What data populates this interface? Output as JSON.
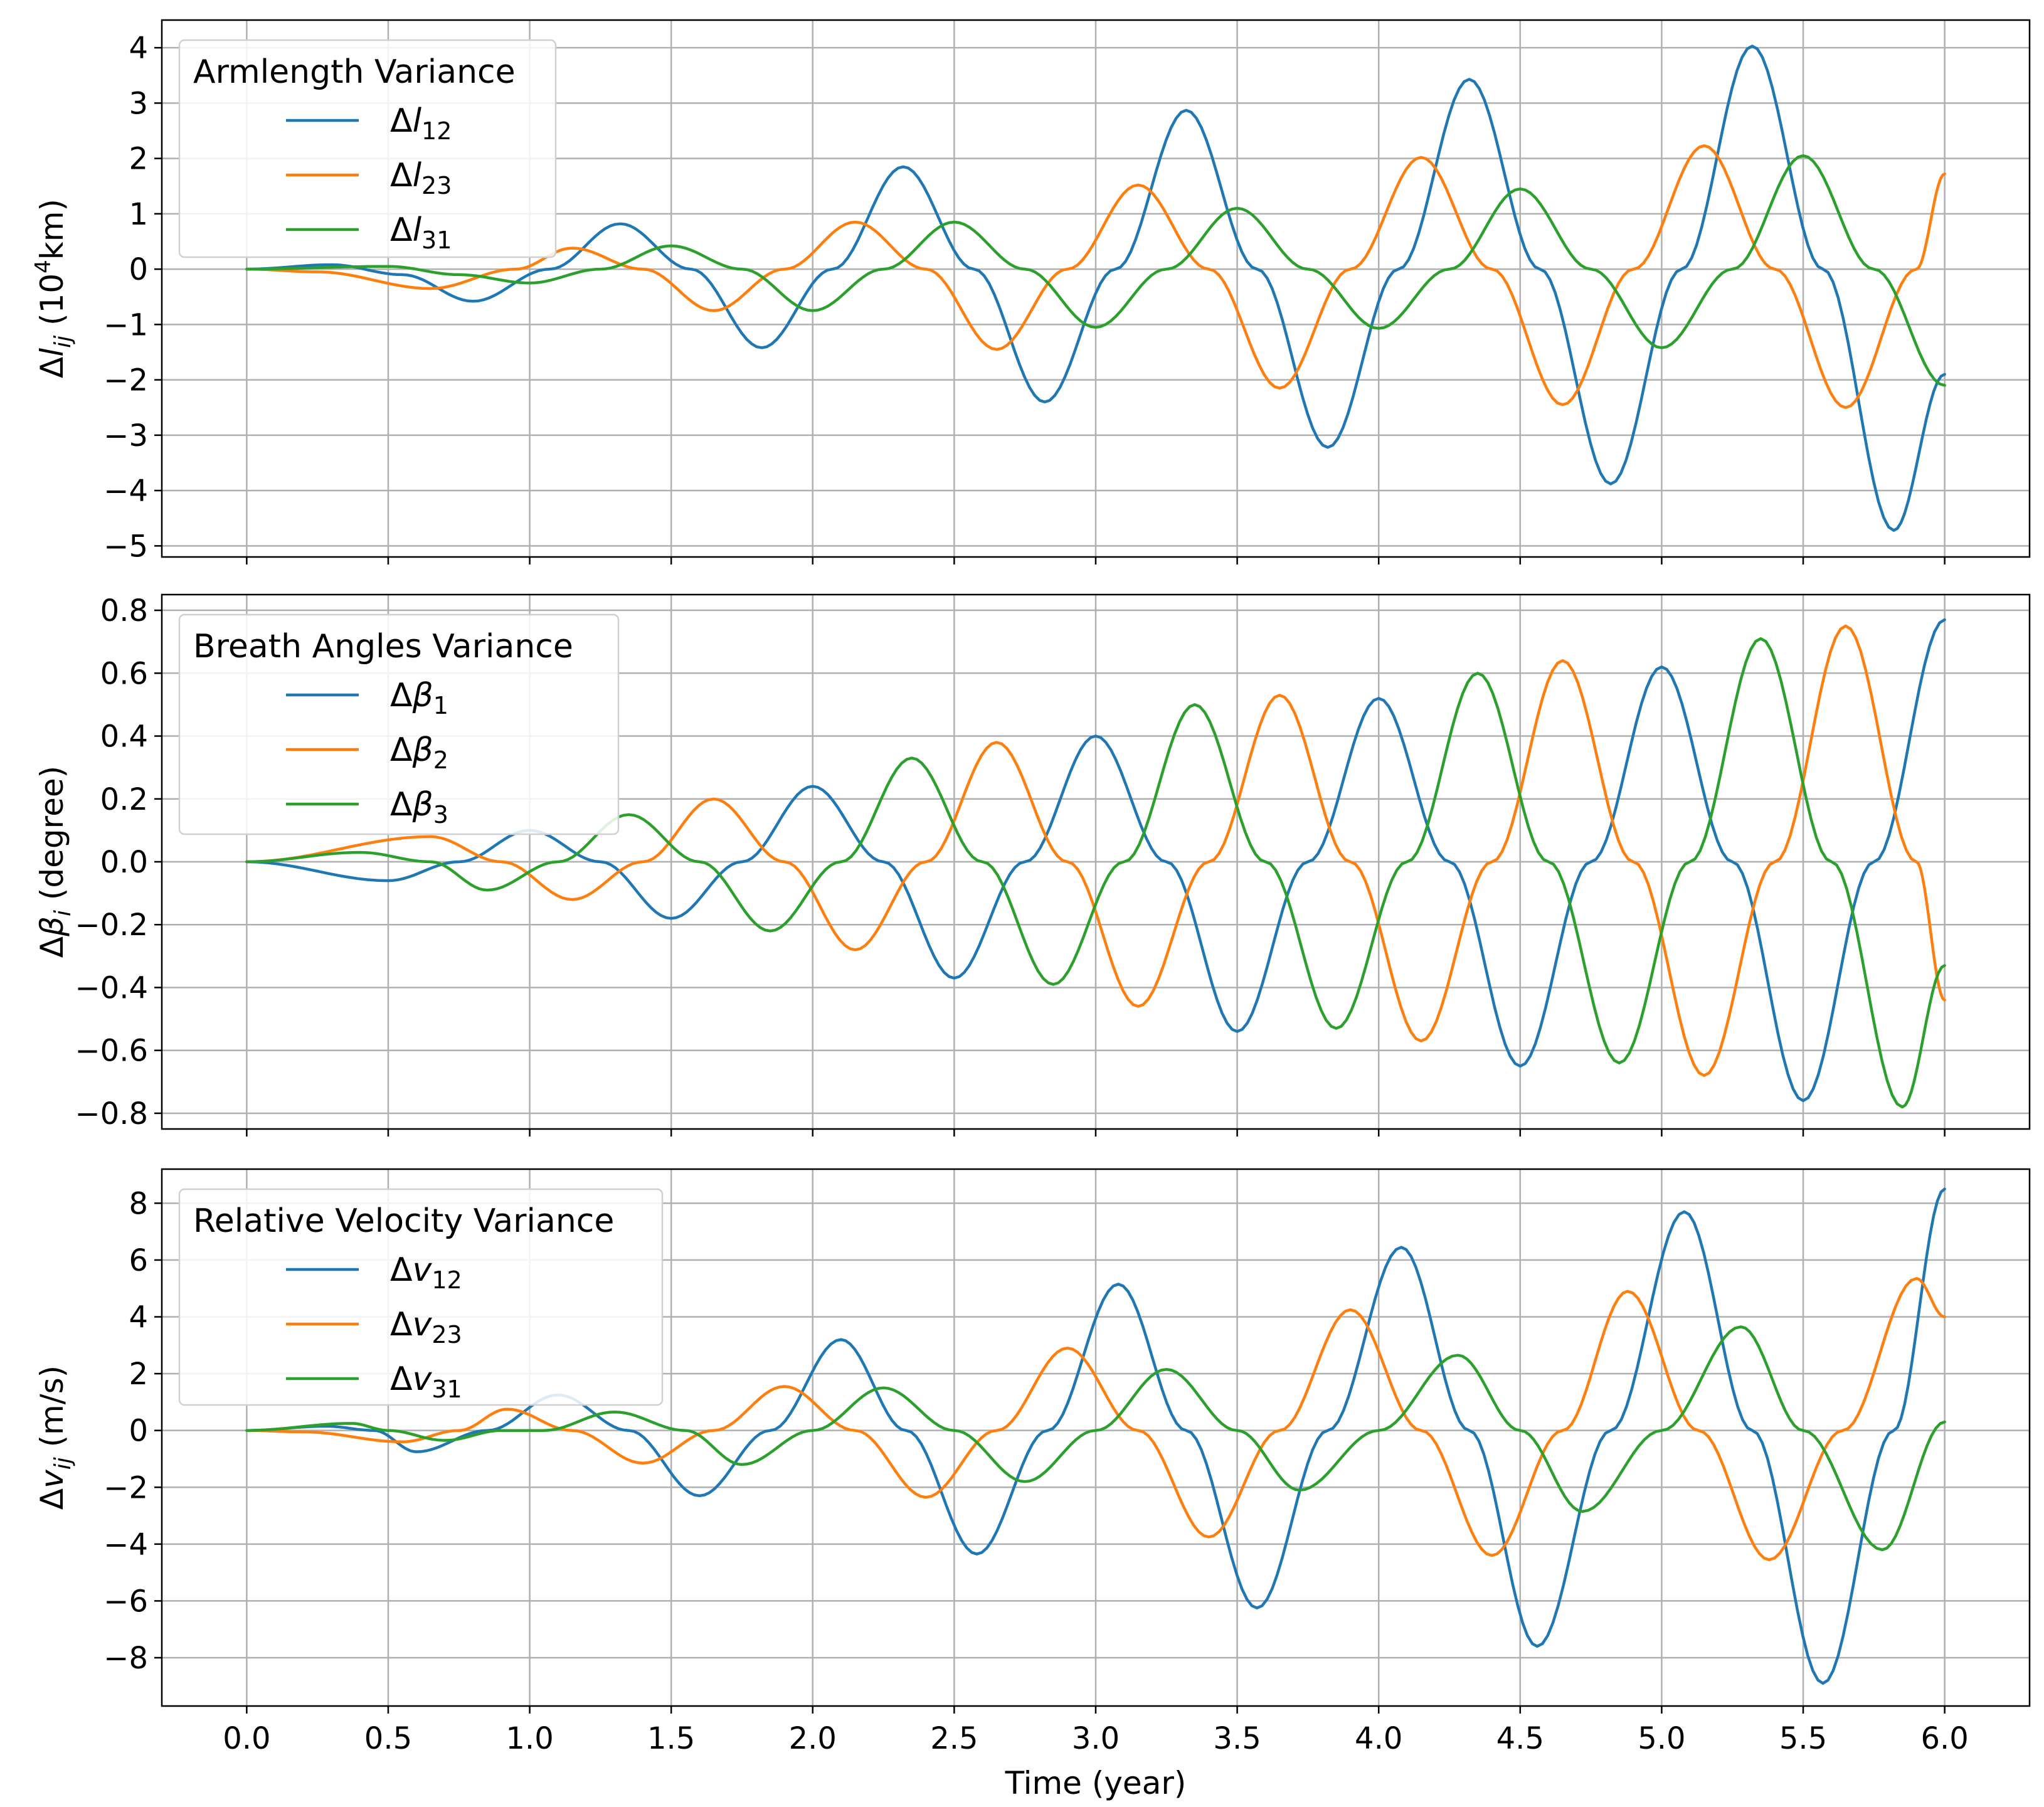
{
  "chart_data": [
    {
      "type": "line",
      "legend_title": "Armlength Variance",
      "ylabel": "Δl_ij (10^4 km)",
      "ylabel_parts": {
        "main": "Δl",
        "sub": "ij",
        "pre_unit": " (10",
        "sup": "4",
        "post_unit": "km)"
      },
      "xlabel": "",
      "ylim": [
        -5.2,
        4.5
      ],
      "yticks": [
        4,
        3,
        2,
        1,
        0,
        -1,
        -2,
        -3,
        -4,
        -5
      ],
      "ytick_labels": [
        "4",
        "3",
        "2",
        "1",
        "0",
        "−1",
        "−2",
        "−3",
        "−4",
        "−5"
      ],
      "xlim": [
        -0.3,
        6.3
      ],
      "grid": true,
      "legend_placement": "top-left",
      "series": [
        {
          "name": "Δl12",
          "label_main": "Δl",
          "label_sub": "12",
          "color": "#1f77b4",
          "x": [
            0,
            0.3,
            0.55,
            0.8,
            1.07,
            1.32,
            1.57,
            1.82,
            2.07,
            2.32,
            2.57,
            2.82,
            3.07,
            3.32,
            3.57,
            3.82,
            4.07,
            4.32,
            4.57,
            4.82,
            5.07,
            5.32,
            5.57,
            5.82,
            6.0
          ],
          "y": [
            0,
            0.08,
            -0.1,
            -0.58,
            0.0,
            0.82,
            0.0,
            -1.42,
            0.0,
            1.85,
            0.0,
            -2.4,
            0.0,
            2.87,
            0.0,
            -3.22,
            0.0,
            3.43,
            0.0,
            -3.88,
            0.0,
            4.03,
            0.0,
            -4.72,
            -1.9
          ]
        },
        {
          "name": "Δl23",
          "label_main": "Δl",
          "label_sub": "23",
          "color": "#ff7f0e",
          "x": [
            0,
            0.25,
            0.65,
            0.95,
            1.15,
            1.4,
            1.65,
            1.9,
            2.15,
            2.4,
            2.65,
            2.9,
            3.15,
            3.4,
            3.65,
            3.9,
            4.15,
            4.4,
            4.65,
            4.9,
            5.15,
            5.4,
            5.65,
            5.9,
            6.0
          ],
          "y": [
            0,
            -0.05,
            -0.35,
            0.0,
            0.38,
            0.0,
            -0.75,
            0.0,
            0.85,
            0.0,
            -1.45,
            0.0,
            1.52,
            0.0,
            -2.15,
            0.0,
            2.02,
            0.0,
            -2.45,
            0.0,
            2.23,
            0.0,
            -2.5,
            0.0,
            1.72
          ]
        },
        {
          "name": "Δl31",
          "label_main": "Δl",
          "label_sub": "31",
          "color": "#2ca02c",
          "x": [
            0,
            0.5,
            0.75,
            1.0,
            1.25,
            1.5,
            1.75,
            2.0,
            2.25,
            2.5,
            2.75,
            3.0,
            3.25,
            3.5,
            3.75,
            4.0,
            4.25,
            4.5,
            4.75,
            5.0,
            5.25,
            5.5,
            5.75,
            6.0
          ],
          "y": [
            0,
            0.05,
            -0.1,
            -0.25,
            0.0,
            0.42,
            0.0,
            -0.75,
            0.0,
            0.85,
            0.0,
            -1.05,
            0.0,
            1.1,
            0.0,
            -1.07,
            0.0,
            1.45,
            0.0,
            -1.42,
            0.0,
            2.05,
            0.0,
            -2.1
          ]
        }
      ]
    },
    {
      "type": "line",
      "legend_title": "Breath Angles Variance",
      "ylabel": "Δβ_i (degree)",
      "ylabel_parts": {
        "main": "Δβ",
        "sub": "i",
        "pre_unit": " (degree)",
        "sup": "",
        "post_unit": ""
      },
      "xlabel": "",
      "ylim": [
        -0.85,
        0.85
      ],
      "yticks": [
        0.8,
        0.6,
        0.4,
        0.2,
        0.0,
        -0.2,
        -0.4,
        -0.6,
        -0.8
      ],
      "ytick_labels": [
        "0.8",
        "0.6",
        "0.4",
        "0.2",
        "0.0",
        "−0.2",
        "−0.4",
        "−0.6",
        "−0.8"
      ],
      "xlim": [
        -0.3,
        6.3
      ],
      "grid": true,
      "legend_placement": "top-left",
      "series": [
        {
          "name": "Δβ1",
          "label_main": "Δβ",
          "label_sub": "1",
          "color": "#1f77b4",
          "x": [
            0,
            0.5,
            0.75,
            1.0,
            1.25,
            1.5,
            1.75,
            2.0,
            2.25,
            2.5,
            2.75,
            3.0,
            3.25,
            3.5,
            3.75,
            4.0,
            4.25,
            4.5,
            4.75,
            5.0,
            5.25,
            5.5,
            5.75,
            6.0
          ],
          "y": [
            0,
            -0.06,
            0.0,
            0.1,
            0.0,
            -0.18,
            0.0,
            0.24,
            0.0,
            -0.37,
            0.0,
            0.4,
            0.0,
            -0.54,
            0.0,
            0.52,
            0.0,
            -0.65,
            0.0,
            0.62,
            0.0,
            -0.76,
            0.0,
            0.77
          ]
        },
        {
          "name": "Δβ2",
          "label_main": "Δβ",
          "label_sub": "2",
          "color": "#ff7f0e",
          "x": [
            0,
            0.65,
            0.9,
            1.15,
            1.4,
            1.65,
            1.9,
            2.15,
            2.4,
            2.65,
            2.9,
            3.15,
            3.4,
            3.65,
            3.9,
            4.15,
            4.4,
            4.65,
            4.9,
            5.15,
            5.4,
            5.65,
            5.9,
            6.0
          ],
          "y": [
            0,
            0.08,
            0.0,
            -0.12,
            0.0,
            0.2,
            0.0,
            -0.28,
            0.0,
            0.38,
            0.0,
            -0.46,
            0.0,
            0.53,
            0.0,
            -0.57,
            0.0,
            0.64,
            0.0,
            -0.68,
            0.0,
            0.75,
            0.0,
            -0.44
          ]
        },
        {
          "name": "Δβ3",
          "label_main": "Δβ",
          "label_sub": "3",
          "color": "#2ca02c",
          "x": [
            0,
            0.4,
            0.65,
            0.85,
            1.1,
            1.35,
            1.6,
            1.85,
            2.1,
            2.35,
            2.6,
            2.85,
            3.1,
            3.35,
            3.6,
            3.85,
            4.1,
            4.35,
            4.6,
            4.85,
            5.1,
            5.35,
            5.6,
            5.85,
            6.0
          ],
          "y": [
            0,
            0.03,
            0.0,
            -0.09,
            0.0,
            0.15,
            0.0,
            -0.22,
            0.0,
            0.33,
            0.0,
            -0.39,
            0.0,
            0.5,
            0.0,
            -0.53,
            0.0,
            0.6,
            0.0,
            -0.64,
            0.0,
            0.71,
            0.0,
            -0.78,
            -0.33
          ]
        }
      ]
    },
    {
      "type": "line",
      "legend_title": "Relative Velocity Variance",
      "ylabel": "Δv_ij (m/s)",
      "ylabel_parts": {
        "main": "Δv",
        "sub": "ij",
        "pre_unit": " (m/s)",
        "sup": "",
        "post_unit": ""
      },
      "xlabel": "Time (year)",
      "ylim": [
        -9.7,
        9.2
      ],
      "yticks": [
        8,
        6,
        4,
        2,
        0,
        -2,
        -4,
        -6,
        -8
      ],
      "ytick_labels": [
        "8",
        "6",
        "4",
        "2",
        "0",
        "−2",
        "−4",
        "−6",
        "−8"
      ],
      "xlim": [
        -0.3,
        6.3
      ],
      "xticks": [
        0.0,
        0.5,
        1.0,
        1.5,
        2.0,
        2.5,
        3.0,
        3.5,
        4.0,
        4.5,
        5.0,
        5.5,
        6.0
      ],
      "xtick_labels": [
        "0.0",
        "0.5",
        "1.0",
        "1.5",
        "2.0",
        "2.5",
        "3.0",
        "3.5",
        "4.0",
        "4.5",
        "5.0",
        "5.5",
        "6.0"
      ],
      "grid": true,
      "legend_placement": "top-left",
      "series": [
        {
          "name": "Δv12",
          "label_main": "Δv",
          "label_sub": "12",
          "color": "#1f77b4",
          "x": [
            0,
            0.28,
            0.45,
            0.6,
            0.85,
            1.1,
            1.35,
            1.6,
            1.85,
            2.1,
            2.33,
            2.58,
            2.83,
            3.08,
            3.32,
            3.57,
            3.82,
            4.08,
            4.32,
            4.56,
            4.82,
            5.08,
            5.32,
            5.57,
            5.82,
            6.0
          ],
          "y": [
            0,
            0.15,
            0.0,
            -0.75,
            0.0,
            1.25,
            0.0,
            -2.3,
            0.0,
            3.2,
            0.0,
            -4.35,
            0.0,
            5.15,
            0.0,
            -6.25,
            0.0,
            6.45,
            0.0,
            -7.6,
            0.0,
            7.7,
            0.0,
            -8.9,
            0.0,
            8.5
          ]
        },
        {
          "name": "Δv23",
          "label_main": "Δv",
          "label_sub": "23",
          "color": "#ff7f0e",
          "x": [
            0,
            0.2,
            0.55,
            0.75,
            0.92,
            1.15,
            1.4,
            1.65,
            1.9,
            2.15,
            2.4,
            2.65,
            2.9,
            3.15,
            3.4,
            3.65,
            3.9,
            4.15,
            4.4,
            4.65,
            4.88,
            5.13,
            5.38,
            5.64,
            5.9,
            6.0
          ],
          "y": [
            0,
            -0.05,
            -0.4,
            0.0,
            0.75,
            0.0,
            -1.15,
            0.0,
            1.55,
            0.0,
            -2.35,
            0.0,
            2.9,
            0.0,
            -3.75,
            0.0,
            4.25,
            0.0,
            -4.4,
            0.0,
            4.9,
            0.0,
            -4.55,
            0.0,
            5.35,
            4.0
          ]
        },
        {
          "name": "Δv31",
          "label_main": "Δv",
          "label_sub": "31",
          "color": "#2ca02c",
          "x": [
            0,
            0.37,
            0.5,
            0.7,
            0.9,
            1.05,
            1.3,
            1.55,
            1.75,
            2.0,
            2.25,
            2.5,
            2.75,
            3.0,
            3.25,
            3.5,
            3.72,
            4.0,
            4.28,
            4.5,
            4.72,
            5.0,
            5.28,
            5.5,
            5.78,
            6.0
          ],
          "y": [
            0,
            0.25,
            0.0,
            -0.35,
            0.0,
            0.0,
            0.65,
            0.0,
            -1.2,
            0.0,
            1.5,
            0.0,
            -1.8,
            0.0,
            2.15,
            0.0,
            -2.1,
            0.0,
            2.65,
            0.0,
            -2.85,
            0.0,
            3.65,
            0.0,
            -4.2,
            0.3
          ]
        }
      ]
    }
  ]
}
